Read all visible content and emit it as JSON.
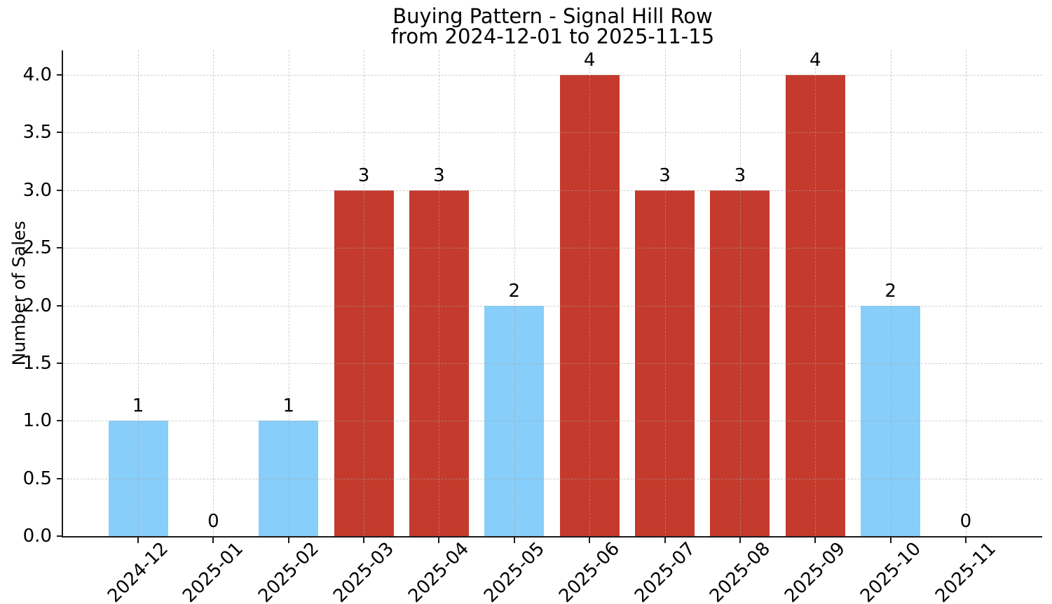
{
  "chart": {
    "title": "Buying Pattern - Signal Hill Row",
    "subtitle": "from 2024-12-01 to 2025-11-15",
    "ylabel": "Number of Sales"
  },
  "chart_data": {
    "type": "bar",
    "title": "Buying Pattern - Signal Hill Row",
    "subtitle": "from 2024-12-01 to 2025-11-15",
    "xlabel": "",
    "ylabel": "Number of Sales",
    "categories": [
      "2024-12",
      "2025-01",
      "2025-02",
      "2025-03",
      "2025-04",
      "2025-05",
      "2025-06",
      "2025-07",
      "2025-08",
      "2025-09",
      "2025-10",
      "2025-11"
    ],
    "values": [
      1,
      0,
      1,
      3,
      3,
      2,
      4,
      3,
      3,
      4,
      2,
      0
    ],
    "value_labels": [
      "1",
      "0",
      "1",
      "3",
      "3",
      "2",
      "4",
      "3",
      "3",
      "4",
      "2",
      "0"
    ],
    "bar_colors": [
      "#87CEFA",
      "#87CEFA",
      "#87CEFA",
      "#C43A2C",
      "#C43A2C",
      "#87CEFA",
      "#C43A2C",
      "#C43A2C",
      "#C43A2C",
      "#C43A2C",
      "#87CEFA",
      "#87CEFA"
    ],
    "y_ticks": [
      "0.0",
      "0.5",
      "1.0",
      "1.5",
      "2.0",
      "2.5",
      "3.0",
      "3.5",
      "4.0"
    ],
    "y_tick_values": [
      0,
      0.5,
      1,
      1.5,
      2,
      2.5,
      3,
      3.5,
      4
    ],
    "ylim": [
      0,
      4.21
    ],
    "x_tick_rotation": 45,
    "grid": "dashed, both axes, drawn over bars",
    "legend_position": "none"
  },
  "colors": {
    "bar_blue": "#87CEFA",
    "bar_red": "#C43A2C",
    "grid": "#cfcfcf",
    "axis": "#1a1a1a",
    "background": "#ffffff",
    "text": "#000000"
  }
}
